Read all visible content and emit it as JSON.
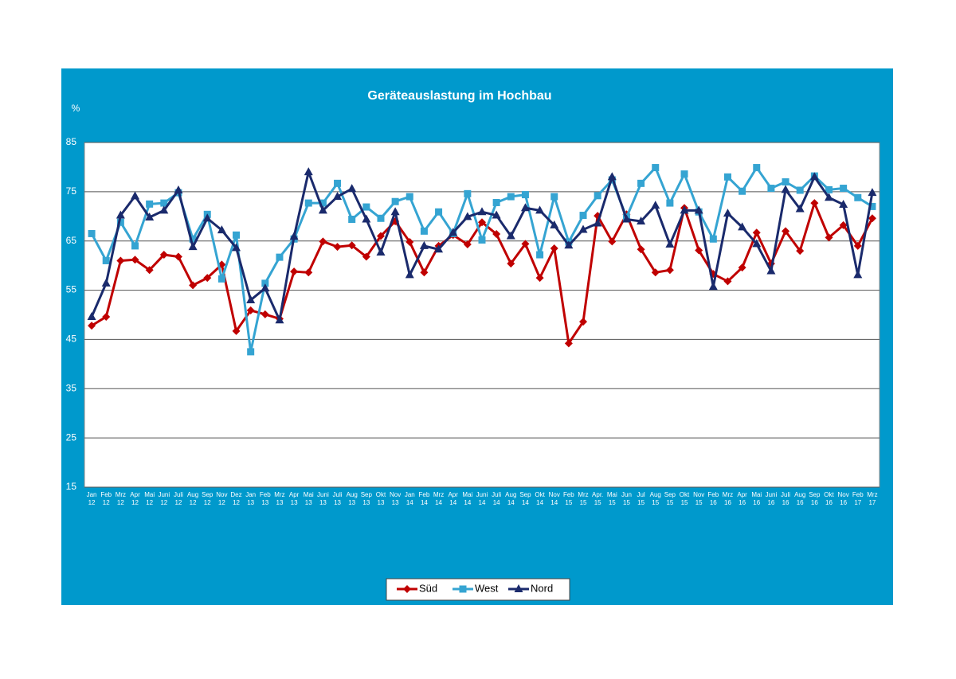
{
  "chart_data": {
    "type": "line",
    "title": "Geräteauslastung im Hochbau",
    "y_label": "%",
    "categories": [
      "Jan 12",
      "Feb 12",
      "Mrz 12",
      "Apr 12",
      "Mai 12",
      "Juni 12",
      "Juli 12",
      "Aug 12",
      "Sep 12",
      "Nov 12",
      "Dez 12",
      "Jan 13",
      "Feb 13",
      "Mrz 13",
      "Apr 13",
      "Mai 13",
      "Juni 13",
      "Juli 13",
      "Aug 13",
      "Sep 13",
      "Okt 13",
      "Nov 13",
      "Jan 14",
      "Feb 14",
      "Mrz 14",
      "Apr 14",
      "Mai 14",
      "Juni 14",
      "Juli 14",
      "Aug 14",
      "Sep 14",
      "Okt 14",
      "Nov 14",
      "Feb 15",
      "Mrz 15",
      "Apr. 15",
      "Mai 15",
      "Jun 15",
      "Jul 15",
      "Aug 15",
      "Sep 15",
      "Okt 15",
      "Nov 15",
      "Feb 16",
      "Mrz 16",
      "Apr 16",
      "Mai 16",
      "Juni 16",
      "Juli 16",
      "Aug 16",
      "Sep 16",
      "Okt 16",
      "Nov 16",
      "Feb 17",
      "Mrz 17"
    ],
    "series": [
      {
        "name": "Süd",
        "color": "#c00000",
        "marker": "diamond",
        "values": [
          47.8,
          49.6,
          61,
          61.2,
          59.1,
          62.2,
          61.8,
          56,
          57.5,
          60.2,
          46.7,
          50.9,
          50.1,
          49.2,
          58.8,
          58.6,
          64.9,
          63.8,
          64.1,
          61.8,
          66,
          69,
          64.8,
          58.6,
          64,
          66.2,
          64.3,
          68.8,
          66.4,
          60.4,
          64.4,
          57.5,
          63.5,
          44.2,
          48.6,
          70.1,
          64.9,
          70.4,
          63.3,
          58.6,
          59.1,
          71.7,
          63.1,
          58.3,
          56.8,
          59.6,
          66.7,
          60.4,
          67,
          63,
          72.7,
          65.7,
          68.2,
          64,
          69.6
        ]
      },
      {
        "name": "West",
        "color": "#35a4d2",
        "marker": "square",
        "values": [
          66.5,
          61,
          68.8,
          64,
          72.5,
          72.7,
          74.8,
          65.4,
          70.4,
          57.3,
          66.2,
          42.5,
          56.4,
          61.7,
          65.4,
          72.7,
          72.7,
          76.7,
          69.4,
          71.9,
          69.6,
          73,
          74,
          67,
          70.9,
          66.5,
          74.6,
          65.2,
          72.8,
          74,
          74.4,
          62.2,
          74,
          64.8,
          70.2,
          74.2,
          77.4,
          69.8,
          76.7,
          79.9,
          72.7,
          78.6,
          70.9,
          65.4,
          78,
          75.1,
          79.9,
          75.7,
          77,
          75.3,
          78.2,
          75.4,
          75.7,
          73.8,
          72
        ]
      },
      {
        "name": "Nord",
        "color": "#1a2a6c",
        "marker": "triangle",
        "values": [
          49.6,
          56.4,
          70.2,
          74.1,
          69.8,
          71.2,
          75.3,
          63.8,
          69.6,
          67.2,
          63.6,
          53,
          55.4,
          48.9,
          65.9,
          79,
          71.2,
          74,
          75.6,
          69.4,
          62.7,
          70.9,
          58.1,
          64,
          63.3,
          66.7,
          69.9,
          70.9,
          70.2,
          66,
          71.7,
          71.2,
          68.2,
          64.1,
          67.3,
          68.6,
          78,
          69.4,
          69,
          72.2,
          64.3,
          71.2,
          71.2,
          55.7,
          70.6,
          67.8,
          64.4,
          58.9,
          75.4,
          71.5,
          78,
          73.8,
          72.4,
          58.1,
          74.8
        ]
      }
    ],
    "ylim": [
      15,
      85
    ],
    "yticks": [
      15,
      25,
      35,
      45,
      55,
      65,
      75,
      85
    ],
    "grid": true,
    "legend": "bottom"
  }
}
